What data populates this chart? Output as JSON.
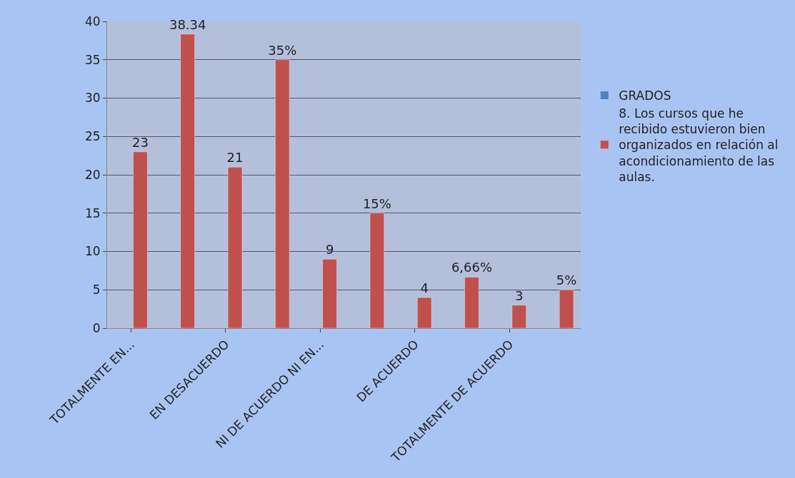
{
  "chart_data": {
    "type": "bar",
    "categories": [
      "TOTALMENTE EN...",
      null,
      "EN DESACUERDO",
      null,
      "NI DE ACUERDO NI EN...",
      null,
      "DE ACUERDO",
      null,
      "TOTALMENTE DE ACUERDO",
      null
    ],
    "series": [
      {
        "name": "GRADOS",
        "color": "#4f81bd",
        "values": [
          null,
          null,
          null,
          null,
          null,
          null,
          null,
          null,
          null,
          null
        ]
      },
      {
        "name": "8. Los cursos que he recibido estuvieron bien organizados en relación al acondicionamiento de las aulas.",
        "color": "#c0504d",
        "values": [
          23,
          38.34,
          21,
          35,
          9,
          15,
          4,
          6.66,
          3,
          5
        ],
        "value_labels": [
          "23",
          "38.34",
          "21",
          "35%",
          "9",
          "15%",
          "4",
          "6,66%",
          "3",
          "5%"
        ]
      }
    ],
    "ylim": [
      0,
      40
    ],
    "yticks": [
      0,
      5,
      10,
      15,
      20,
      25,
      30,
      35,
      40
    ],
    "grid": "y",
    "legend": "right"
  }
}
